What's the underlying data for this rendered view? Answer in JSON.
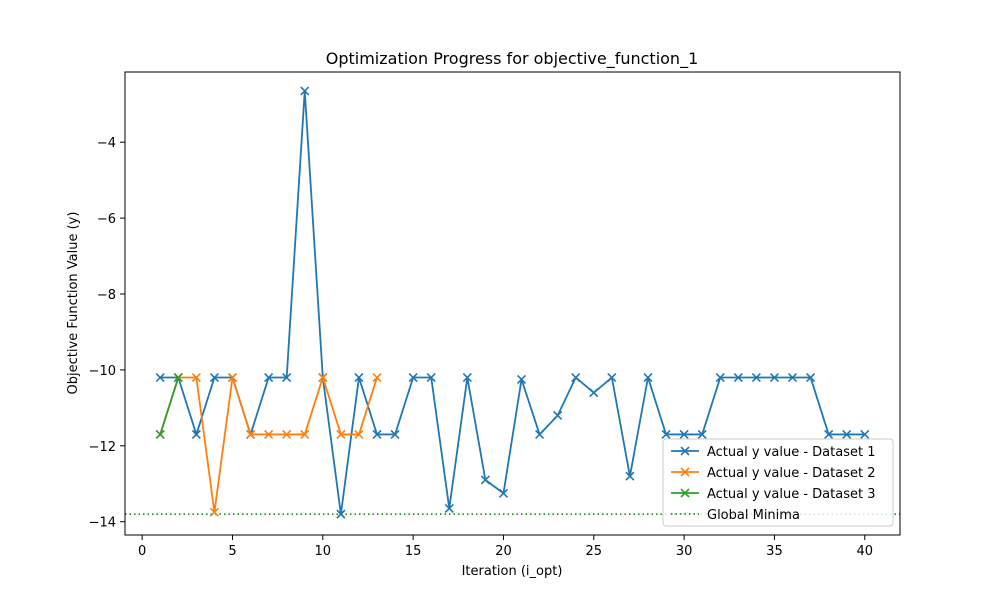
{
  "chart_data": {
    "type": "line",
    "title": "Optimization Progress for objective_function_1",
    "xlabel": "Iteration (i_opt)",
    "ylabel": "Objective Function Value (y)",
    "xlim": [
      -0.95,
      41.95
    ],
    "ylim": [
      -14.35,
      -2.15
    ],
    "xticks": [
      0,
      5,
      10,
      15,
      20,
      25,
      30,
      35,
      40
    ],
    "yticks": [
      -14,
      -12,
      -10,
      -8,
      -6,
      -4
    ],
    "legend_position": "lower right",
    "series": [
      {
        "name": "Actual y value - Dataset 1",
        "color": "#1f77b4",
        "marker": "x",
        "x": [
          1,
          2,
          3,
          4,
          5,
          6,
          7,
          8,
          9,
          10,
          11,
          12,
          13,
          14,
          15,
          16,
          17,
          18,
          19,
          20,
          21,
          22,
          23,
          24,
          25,
          26,
          27,
          28,
          29,
          30,
          31,
          32,
          33,
          34,
          35,
          36,
          37,
          38,
          39,
          40
        ],
        "values": [
          -10.2,
          -10.2,
          -11.7,
          -10.2,
          -10.2,
          -11.7,
          -10.2,
          -10.2,
          -2.65,
          -10.2,
          -13.8,
          -10.2,
          -11.7,
          -11.7,
          -10.2,
          -10.2,
          -13.65,
          -10.2,
          -12.9,
          -13.25,
          -10.25,
          -11.7,
          -11.2,
          -10.2,
          -10.6,
          -10.2,
          -12.8,
          -10.2,
          -11.7,
          -11.7,
          -11.7,
          -10.2,
          -10.2,
          -10.2,
          -10.2,
          -10.2,
          -10.2,
          -11.7,
          -11.7,
          -11.7
        ]
      },
      {
        "name": "Actual y value - Dataset 2",
        "color": "#ff7f0e",
        "marker": "x",
        "x": [
          1,
          2,
          3,
          4,
          5,
          6,
          7,
          8,
          9,
          10,
          11,
          12,
          13
        ],
        "values": [
          -11.7,
          -10.2,
          -10.2,
          -13.75,
          -10.2,
          -11.7,
          -11.7,
          -11.7,
          -11.7,
          -10.2,
          -11.7,
          -11.7,
          -10.2
        ]
      },
      {
        "name": "Actual y value - Dataset 3",
        "color": "#2ca02c",
        "marker": "x",
        "x": [
          1,
          2
        ],
        "values": [
          -11.7,
          -10.2
        ]
      }
    ],
    "reference_lines": [
      {
        "name": "Global Minima",
        "color": "#008000",
        "style": "dotted",
        "y": -13.8
      }
    ]
  }
}
